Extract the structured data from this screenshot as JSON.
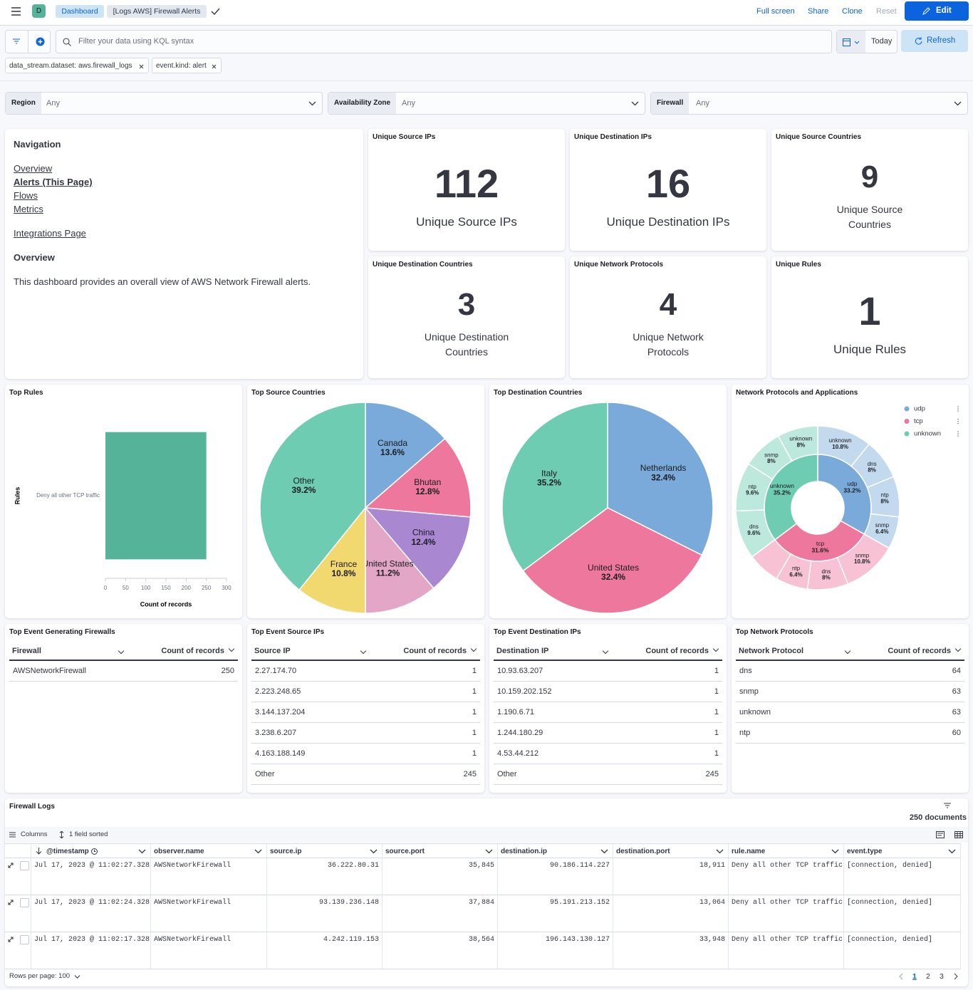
{
  "header": {
    "avatar": "D",
    "breadcrumbs": [
      "Dashboard",
      "[Logs AWS] Firewall Alerts"
    ],
    "actions": [
      "Full screen",
      "Share",
      "Clone",
      "Reset"
    ],
    "edit": "Edit"
  },
  "query": {
    "placeholder": "Filter your data using KQL syntax",
    "date": "Today",
    "refresh": "Refresh"
  },
  "filters": [
    {
      "field": "data_stream.dataset:",
      "value": "aws.firewall_logs"
    },
    {
      "field": "event.kind:",
      "value": "alert"
    }
  ],
  "controls": [
    {
      "label": "Region",
      "value": "Any"
    },
    {
      "label": "Availability Zone",
      "value": "Any"
    },
    {
      "label": "Firewall",
      "value": "Any"
    }
  ],
  "navigation": {
    "title": "Navigation",
    "links": [
      "Overview",
      "Alerts (This Page)",
      "Flows",
      "Metrics"
    ],
    "integrations": "Integrations Page",
    "heading": "Overview",
    "text": "This dashboard provides an overall view of AWS Network Firewall alerts."
  },
  "metrics": [
    {
      "title": "Unique Source IPs",
      "value": 112,
      "label": "Unique Source IPs"
    },
    {
      "title": "Unique Destination IPs",
      "value": 16,
      "label": "Unique Destination IPs"
    },
    {
      "title": "Unique Source Countries",
      "value": 9,
      "label": "Unique Source Countries"
    },
    {
      "title": "Unique Destination Countries",
      "value": 3,
      "label": "Unique Destination Countries"
    },
    {
      "title": "Unique Network Protocols",
      "value": 4,
      "label": "Unique Network Protocols"
    },
    {
      "title": "Unique Rules",
      "value": 1,
      "label": "Unique Rules"
    }
  ],
  "chart_data": [
    {
      "type": "bar",
      "title": "Top Rules",
      "orientation": "horizontal",
      "categories": [
        "Deny all other TCP traffic"
      ],
      "values": [
        250
      ],
      "color": "#54b399",
      "xlabel": "Count of records",
      "ylabel": "Rules",
      "xlim": [
        0,
        300
      ],
      "xticks": [
        0,
        50,
        100,
        150,
        200,
        250,
        300
      ]
    },
    {
      "type": "pie",
      "title": "Top Source Countries",
      "categories": [
        "Canada",
        "Bhutan",
        "China",
        "United States",
        "France",
        "Other"
      ],
      "values": [
        13.6,
        12.8,
        12.4,
        11.2,
        10.8,
        39.2
      ],
      "value_labels": [
        "13.6%",
        "12.8%",
        "12.4%",
        "11.2%",
        "10.8%",
        "39.2%"
      ],
      "colors": [
        "#79aad9",
        "#ee789d",
        "#a987d1",
        "#e4a6c7",
        "#f1d86f",
        "#6dccb1"
      ]
    },
    {
      "type": "pie",
      "title": "Top Destination Countries",
      "categories": [
        "Netherlands",
        "United States",
        "Italy"
      ],
      "values": [
        32.4,
        32.4,
        35.2
      ],
      "value_labels": [
        "32.4%",
        "32.4%",
        "35.2%"
      ],
      "colors": [
        "#79aad9",
        "#ee789d",
        "#6dccb1"
      ]
    },
    {
      "type": "sunburst",
      "title": "Network Protocols and Applications",
      "categories": [
        "udp",
        "tcp",
        "unknown"
      ],
      "values": [
        33.2,
        31.6,
        35.2
      ],
      "value_labels": [
        "33.2%",
        "31.6%",
        "35.2%"
      ],
      "colors": [
        "#79aad9",
        "#ee789d",
        "#6dccb1"
      ],
      "children": [
        {
          "categories": [
            "unknown",
            "dns",
            "ntp",
            "snmp"
          ],
          "values": [
            10.8,
            8,
            8,
            6.4
          ],
          "value_labels": [
            "10.8%",
            "8%",
            "8%",
            "6.4%"
          ]
        },
        {
          "categories": [
            "snmp",
            "dns",
            "ntp",
            null
          ],
          "values": [
            10.8,
            8,
            6.4,
            6.4
          ],
          "value_labels": [
            "10.8%",
            "8%",
            "6.4%",
            null
          ]
        },
        {
          "categories": [
            "dns",
            "ntp",
            "snmp",
            "unknown"
          ],
          "values": [
            9.6,
            9.6,
            8,
            8
          ],
          "value_labels": [
            "9.6%",
            "9.6%",
            "8%",
            "8%"
          ]
        }
      ]
    }
  ],
  "tables": [
    {
      "title": "Top Event Generating Firewalls",
      "columns": [
        "Firewall",
        "Count of records"
      ],
      "rows": [
        [
          "AWSNetworkFirewall",
          250
        ]
      ]
    },
    {
      "title": "Top Event Source IPs",
      "columns": [
        "Source IP",
        "Count of records"
      ],
      "rows": [
        [
          "2.27.174.70",
          1
        ],
        [
          "2.223.248.65",
          1
        ],
        [
          "3.144.137.204",
          1
        ],
        [
          "3.238.6.207",
          1
        ],
        [
          "4.163.188.149",
          1
        ],
        [
          "Other",
          245
        ]
      ]
    },
    {
      "title": "Top Event Destination IPs",
      "columns": [
        "Destination IP",
        "Count of records"
      ],
      "rows": [
        [
          "10.93.63.207",
          1
        ],
        [
          "10.159.202.152",
          1
        ],
        [
          "1.190.6.71",
          1
        ],
        [
          "1.244.180.29",
          1
        ],
        [
          "4.53.44.212",
          1
        ],
        [
          "Other",
          245
        ]
      ]
    },
    {
      "title": "Top Network Protocols",
      "columns": [
        "Network Protocol",
        "Count of records"
      ],
      "rows": [
        [
          "dns",
          64
        ],
        [
          "snmp",
          63
        ],
        [
          "unknown",
          63
        ],
        [
          "ntp",
          60
        ]
      ]
    }
  ],
  "logs": {
    "title": "Firewall Logs",
    "count": "250 documents",
    "columns_button": "Columns",
    "sorted": "1 field sorted",
    "columns": [
      "@timestamp",
      "observer.name",
      "source.ip",
      "source.port",
      "destination.ip",
      "destination.port",
      "rule.name",
      "event.type"
    ],
    "rows": [
      [
        "Jul 17, 2023 @ 11:02:27.328",
        "AWSNetworkFirewall",
        "36.222.80.31",
        "35,845",
        "90.186.114.227",
        "18,911",
        "Deny all other TCP traffic",
        "[connection, denied]"
      ],
      [
        "Jul 17, 2023 @ 11:02:24.328",
        "AWSNetworkFirewall",
        "93.139.236.148",
        "37,884",
        "95.191.213.152",
        "13,064",
        "Deny all other TCP traffic",
        "[connection, denied]"
      ],
      [
        "Jul 17, 2023 @ 11:02:17.328",
        "AWSNetworkFirewall",
        "4.242.119.153",
        "38,564",
        "196.143.130.127",
        "33,948",
        "Deny all other TCP traffic",
        "[connection, denied]"
      ]
    ],
    "rows_per_page": "Rows per page: 100",
    "pages": [
      1,
      2,
      3
    ]
  }
}
